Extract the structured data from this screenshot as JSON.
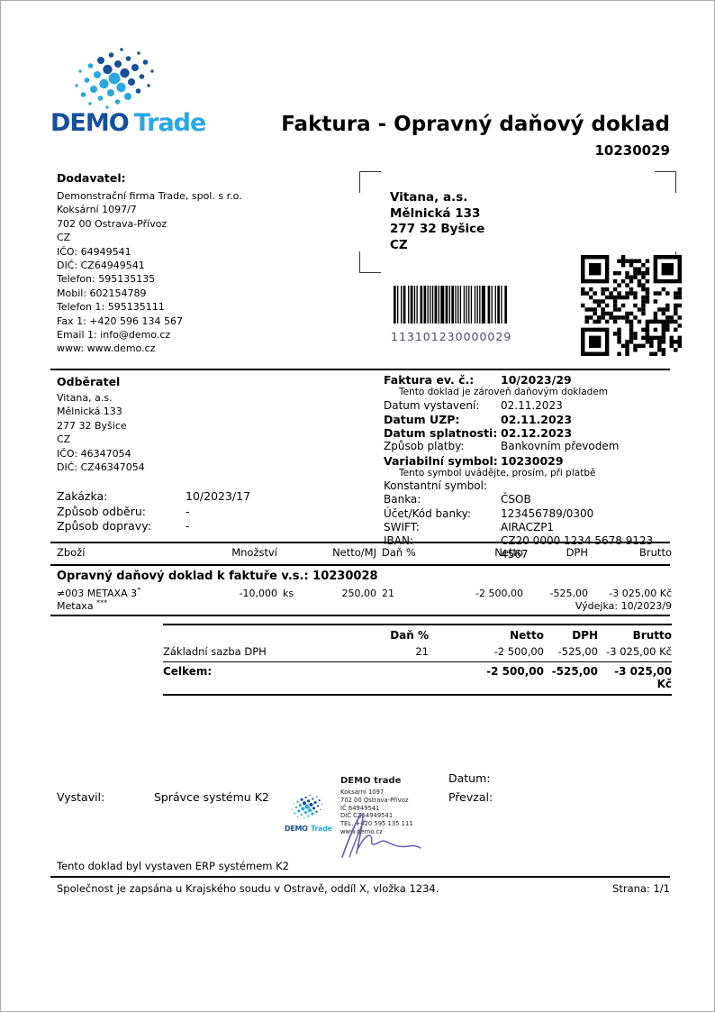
{
  "colors": {
    "logo_dark": "#164f9c",
    "logo_light": "#29a8e0",
    "barcode_text": "#3f4f63",
    "signature_ink": "#6a5fae"
  },
  "logo": {
    "demo": "DEMO",
    "trade": "Trade"
  },
  "header": {
    "title": "Faktura - Opravný daňový doklad",
    "number": "10230029"
  },
  "supplier": {
    "label": "Dodavatel:",
    "lines": [
      "Demonstrační firma Trade, spol. s r.o.",
      "Koksární 1097/7",
      "702 00 Ostrava-Přívoz",
      "CZ",
      "IČO: 64949541",
      "DIČ: CZ64949541",
      "Telefon: 595135135",
      "Mobil: 602154789",
      "Telefon 1: 595135111",
      "Fax 1: +420 596 134 567",
      "Email 1: info@demo.cz",
      "www: www.demo.cz"
    ]
  },
  "recipient_window": {
    "lines": [
      "Vitana, a.s.",
      "Mělnická 133",
      "277 32 Byšice",
      "CZ"
    ]
  },
  "barcode": {
    "value": "113101230000029"
  },
  "customer": {
    "label": "Odběratel",
    "lines": [
      "Vitana, a.s.",
      "Mělnická 133",
      "277 32 Byšice",
      "CZ",
      "IČO: 46347054",
      "DIČ: CZ46347054"
    ],
    "order_rows": [
      {
        "label": "Zakázka:",
        "value": "10/2023/17"
      },
      {
        "label": "Způsob odběru:",
        "value": "-"
      },
      {
        "label": "Způsob dopravy:",
        "value": "-"
      }
    ]
  },
  "invoice_info": {
    "rows": [
      {
        "label": "Faktura ev. č.:",
        "value": "10/2023/29"
      },
      {
        "label": "Datum vystavení:",
        "value": "02.11.2023"
      },
      {
        "label": "Datum UZP:",
        "value": "02.11.2023"
      },
      {
        "label": "Datum splatnosti:",
        "value": "02.12.2023"
      },
      {
        "label": "Způsob platby:",
        "value": "Bankovním převodem"
      },
      {
        "label": "Variabilní symbol:",
        "value": "10230029"
      },
      {
        "label": "Konstantní symbol:",
        "value": ""
      },
      {
        "label": "Banka:",
        "value": "ČSOB"
      },
      {
        "label": "Účet/Kód banky:",
        "value": "123456789/0300"
      },
      {
        "label": "SWIFT:",
        "value": "AIRACZP1"
      },
      {
        "label": "IBAN:",
        "value": "CZ20 0000 1234 5678 9123 4567"
      }
    ],
    "note1": "Tento doklad je zároveň daňovým dokladem",
    "note2": "Tento symbol uvádějte, prosím, při platbě"
  },
  "items_table": {
    "headers": {
      "zbozi": "Zboží",
      "mnozstvi": "Množství",
      "netto_mj": "Netto/MJ",
      "dan": "Daň %",
      "netto": "Netto",
      "dph": "DPH",
      "brutto": "Brutto"
    },
    "section_title": "Opravný daňový doklad k faktuře v.s.: 10230028",
    "row": {
      "code_name": "≠003 METAXA 3",
      "code_sup": "*",
      "qty": "-10,000",
      "unit": "ks",
      "netto_mj": "250,00",
      "dan": "21",
      "netto": "-2 500,00",
      "dph": "-525,00",
      "brutto": "-3 025,00 Kč",
      "note": "Metaxa",
      "note_sup": "***",
      "doc_ref": "Výdejka: 10/2023/9"
    }
  },
  "summary_table": {
    "headers": {
      "dan": "Daň %",
      "netto": "Netto",
      "dph": "DPH",
      "brutto": "Brutto"
    },
    "row": {
      "label": "Základní sazba DPH",
      "dan": "21",
      "netto": "-2 500,00",
      "dph": "-525,00",
      "brutto": "-3 025,00 Kč"
    },
    "total": {
      "label": "Celkem:",
      "netto": "-2 500,00",
      "dph": "-525,00",
      "brutto": "-3 025,00 Kč"
    }
  },
  "sign_block": {
    "issued_label": "Vystavil:",
    "issued_by": "Správce systému K2",
    "date_label": "Datum:",
    "received_label": "Převzal:",
    "stamp": {
      "logo_demo": "DEMO",
      "logo_trade": "Trade",
      "name": "DEMO trade",
      "lines": [
        "Koksární 1097",
        "702 00 Ostrava-Přívoz",
        "IČ 64949541",
        "DIČ CZ64949541",
        "TEL. +420 595 135 111",
        "www.demo.cz"
      ]
    }
  },
  "footer": {
    "erp_note": "Tento doklad byl vystaven ERP systémem K2",
    "registration": "Společnost je zapsána u Krajského soudu v Ostravě, oddíl X, vložka 1234.",
    "page": "Strana: 1/1"
  }
}
